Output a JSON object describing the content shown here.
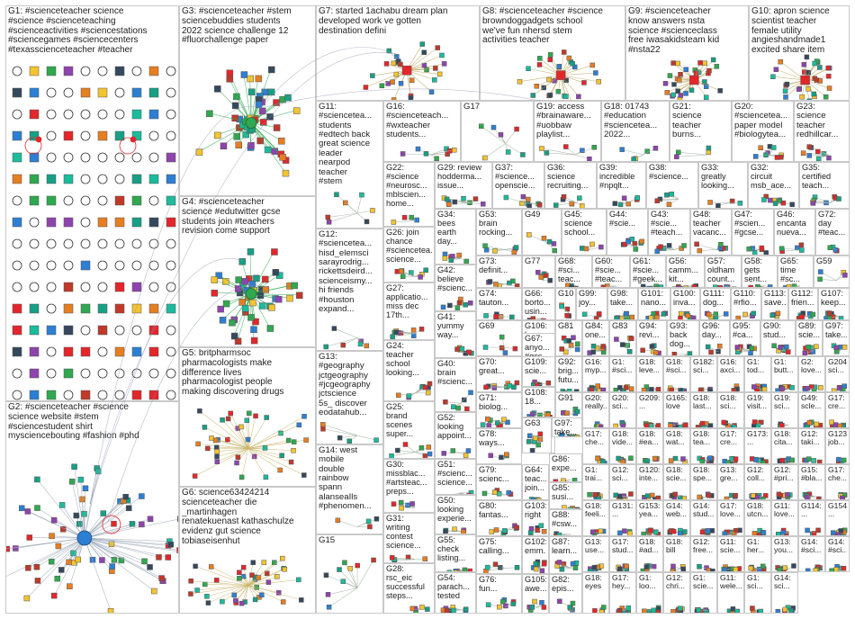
{
  "title": "",
  "groups": [
    {
      "id": "G1",
      "text": "G1: #scienceteacher science\n#science #scienceteaching\n#scienceactivities #sciencestations\n#sciencegames #sciencecenters\n#texasscienceteacher #teacher"
    },
    {
      "id": "G2",
      "text": "G2: #scienceteacher #science\nscience website #stem\n#sciencestudent shirt\nmysciencebouting #fashion #phd"
    },
    {
      "id": "G3",
      "text": "G3: #scienceteacher #stem\nsciencebuddies students\n2022 science challenge 12\n#fluorchallenge paper"
    },
    {
      "id": "G4",
      "text": "G4: #scienceteacher\nscience #edutwitter gcse\nstudents join #teachers\nrevision come support"
    },
    {
      "id": "G5",
      "text": "G5: britpharmsoc\npharmacologists make\ndifference lives\npharmacologist people\nmaking discovering drugs"
    },
    {
      "id": "G6",
      "text": "G6: science63424214\nscienceteacher die\n_martinhagen\nrenatekuenast kathaschulze\nevidenz gut science\ntobiaseisenhut"
    },
    {
      "id": "G7",
      "text": "G7: started 1achabu dream plan\ndeveloped work ve gotten\ndestination defini"
    },
    {
      "id": "G8",
      "text": "G8: #scienceteacher #science\nbrowndoggadgets school\nwe've fun nhersd stem\nactivities teacher"
    },
    {
      "id": "G9",
      "text": "G9: #scienceteacher\nknow answers nsta\nscience #scienceclass\nfree iwasakidsteam kid\n#nsta22"
    },
    {
      "id": "G10",
      "text": "G10: apron science\nscientist teacher\nfemale utility\nangieshandmade1\nexcited share item"
    },
    {
      "id": "G11",
      "text": "G11:\n#scienceteа...\nstudents\n#edtech back\ngreat science\nleader\nnearpod\nteacher\n#stem"
    },
    {
      "id": "G12",
      "text": "G12:\n#scienceteа...\nhisd_elemsci\nsarayrodrig...\nrickettsdeird...\nsciencеismy...\nhi friends\n#houston\nexpand..."
    },
    {
      "id": "G13",
      "text": "G13:\n#geography\njctgeography\n#jcgeography\njctscience\n5s_ discover\neodatahub..."
    },
    {
      "id": "G14",
      "text": "G14: west\nmobile\ndouble\nrainbow\nspann\nalanseaIls\n#phenomen..."
    },
    {
      "id": "G15",
      "text": "G15"
    },
    {
      "id": "G16",
      "text": "G16:\n#scienceteach...\n#wxteacher\nstudents..."
    },
    {
      "id": "G17",
      "text": "G17"
    },
    {
      "id": "G18",
      "text": "G18: 01743\n#education\n#scienceteа...\n2022..."
    },
    {
      "id": "G19",
      "text": "G19: access\n#brainaware...\n#uobbaw\nplaylist..."
    },
    {
      "id": "G20",
      "text": "G20:\n#scienceteа...\npaper model\n#biologyteа..."
    },
    {
      "id": "G21",
      "text": "G21:\nscience\nteacher\nburns..."
    },
    {
      "id": "G22",
      "text": "G22:\n#science\n#neurosc...\nmblscien...\nhome..."
    },
    {
      "id": "G23",
      "text": "G23:\nscience\nteacher\nredhillcar..."
    },
    {
      "id": "G24",
      "text": "G24:\nteacher\nschool\nlooking..."
    },
    {
      "id": "G25",
      "text": "G25:\nbrand\nscenes\nsuper..."
    },
    {
      "id": "G26",
      "text": "G26: join\nchance\n#scienceteа...\nscience..."
    },
    {
      "id": "G27",
      "text": "G27:\napplicatio...\nmiss dec\n17th..."
    },
    {
      "id": "G28",
      "text": "G28:\nrsc_eic\nsuccessful\nsteps..."
    },
    {
      "id": "G29",
      "text": "G29: review\nhodderma...\nissue..."
    },
    {
      "id": "G30",
      "text": "G30:\nmissblac...\n#artsteac...\npreps..."
    },
    {
      "id": "G31",
      "text": "G31:\nwriting\ncontest\nscience..."
    },
    {
      "id": "G32",
      "text": "G32:\ncircuit\nmsb_ace..."
    },
    {
      "id": "G33",
      "text": "G33:\ngreatly\nlooking..."
    },
    {
      "id": "G34",
      "text": "G34:\nbees\nearth\nday..."
    },
    {
      "id": "G35",
      "text": "G35:\ncertified\nteach..."
    },
    {
      "id": "G36",
      "text": "G36:\nscience\nrecruiting..."
    },
    {
      "id": "G37",
      "text": "G37:\n#science...\nopenscie..."
    },
    {
      "id": "G38",
      "text": "G38:\n#science..."
    },
    {
      "id": "G39",
      "text": "G39:\nincredible\n#npqlt..."
    },
    {
      "id": "G40",
      "text": "G40:\nbrain\n#scienc..."
    },
    {
      "id": "G41",
      "text": "G41:\nyummy\nway..."
    },
    {
      "id": "G42",
      "text": "G42:\nbelieve\n#scienc..."
    },
    {
      "id": "G43",
      "text": "G43:\n#scie...\n#teach..."
    },
    {
      "id": "G44",
      "text": "G44:\n#scie..."
    },
    {
      "id": "G45",
      "text": "G45:\nscience\nschool..."
    },
    {
      "id": "G46",
      "text": "G46:\nencanta\nnueva..."
    },
    {
      "id": "G47",
      "text": "G47:\n#scien...\n#gcse..."
    },
    {
      "id": "G48",
      "text": "G48:\nteacher\nvacanc..."
    },
    {
      "id": "G49",
      "text": "G49"
    },
    {
      "id": "G50",
      "text": "G50:\nlooking\nexperie..."
    },
    {
      "id": "G51",
      "text": "G51:\n#scienc...\nscience..."
    },
    {
      "id": "G52",
      "text": "G52:\nlooking\nappoint..."
    },
    {
      "id": "G53",
      "text": "G53:\nbrain\nrocking..."
    },
    {
      "id": "G54",
      "text": "G54:\nparach...\ntested"
    },
    {
      "id": "G55",
      "text": "G55:\ncheck\nlisting..."
    },
    {
      "id": "G56",
      "text": "G56:\ncamm...\nkit..."
    },
    {
      "id": "G57",
      "text": "G57:\noldham\ncount..."
    },
    {
      "id": "G58",
      "text": "G58:\ngets\nsent..."
    },
    {
      "id": "G59",
      "text": "G59"
    },
    {
      "id": "G60",
      "text": "G60:\n#scie...\n#teac..."
    },
    {
      "id": "G61",
      "text": "G61:\n#scie...\n#geek..."
    },
    {
      "id": "G62",
      "text": "G62:\ncheck\nscie..."
    },
    {
      "id": "G63",
      "text": "G63"
    },
    {
      "id": "G64",
      "text": "G64:\nteac...\njoin..."
    },
    {
      "id": "G65",
      "text": "G65:\ntime\n#sc..."
    },
    {
      "id": "G66",
      "text": "G66:\nborto...\nusin..."
    },
    {
      "id": "G67",
      "text": "G67:\nanyo...\n#gcs..."
    },
    {
      "id": "G68",
      "text": "G68:\n#sci...\nteac..."
    },
    {
      "id": "G69",
      "text": "G69"
    },
    {
      "id": "G70",
      "text": "G70:\ngreat..."
    },
    {
      "id": "G71",
      "text": "G71:\nbiolog..."
    },
    {
      "id": "G72",
      "text": "G72:\nday\n#teac..."
    },
    {
      "id": "G73",
      "text": "G73:\ndefinit..."
    },
    {
      "id": "G74",
      "text": "G74:\ntauton..."
    },
    {
      "id": "G75",
      "text": "G75:\ncalling..."
    },
    {
      "id": "G76",
      "text": "G76:\nfun..."
    },
    {
      "id": "G77",
      "text": "G77"
    },
    {
      "id": "G78",
      "text": "G78:\nways..."
    },
    {
      "id": "G79",
      "text": "G79:\nscienc..."
    },
    {
      "id": "G80",
      "text": "G80:\nfantas..."
    },
    {
      "id": "G81",
      "text": "G81"
    },
    {
      "id": "G82",
      "text": "G82:\nepis..."
    },
    {
      "id": "G83",
      "text": "G83"
    },
    {
      "id": "G84",
      "text": "G84:\none..."
    },
    {
      "id": "G85",
      "text": "G85:\nsusi..."
    },
    {
      "id": "G86",
      "text": "G86:\nexpe..."
    },
    {
      "id": "G87",
      "text": "G87:\nlearn..."
    },
    {
      "id": "G88",
      "text": "G88:\n#csw..."
    },
    {
      "id": "G89",
      "text": "G89:\nscie..."
    },
    {
      "id": "G90",
      "text": "G90:\nstud..."
    },
    {
      "id": "G91",
      "text": "G91"
    },
    {
      "id": "G92",
      "text": "G92:\nbrig...\nfutu..."
    },
    {
      "id": "G93",
      "text": "G93:\nback\ndog..."
    },
    {
      "id": "G94",
      "text": "G94:\nrevi..."
    },
    {
      "id": "G95",
      "text": "G95:\n#ca..."
    },
    {
      "id": "G96",
      "text": "G96:\nday..."
    },
    {
      "id": "G97",
      "text": "G97:\ntake..."
    },
    {
      "id": "G98",
      "text": "G98:\ntake..."
    },
    {
      "id": "G99",
      "text": "G99:\njoy..."
    },
    {
      "id": "G100",
      "text": "G100:\ninva..."
    },
    {
      "id": "G101",
      "text": "G101:\nnano..."
    },
    {
      "id": "G102",
      "text": "G102:\nemm..."
    },
    {
      "id": "G103",
      "text": "G103:\nright"
    },
    {
      "id": "G104",
      "text": "G104"
    },
    {
      "id": "G105",
      "text": "G105:\nawe..."
    },
    {
      "id": "G106",
      "text": "G106:\nhono..."
    },
    {
      "id": "G107",
      "text": "G107:\nkeep..."
    },
    {
      "id": "G108",
      "text": "G108:\n18..."
    },
    {
      "id": "G109",
      "text": "G109:\nscie..."
    },
    {
      "id": "G110",
      "text": "G110:\n#rfio..."
    },
    {
      "id": "G111",
      "text": "G111:\ndog..."
    },
    {
      "id": "G112",
      "text": "G112:\nfrien..."
    },
    {
      "id": "G113",
      "text": "G113:\nsave..."
    }
  ],
  "small_groups": [
    {
      "id": "G16",
      "text": "G16:\nmyp..."
    },
    {
      "id": "G17",
      "text": "G1:\n#sci..."
    },
    {
      "id": "G18",
      "text": "G18:\nleve..."
    },
    {
      "id": "G18",
      "text": "G18:\n#sci..."
    },
    {
      "id": "G182",
      "text": "G182:\nsci..."
    },
    {
      "id": "G16",
      "text": "G16:\naxci..."
    },
    {
      "id": "G1",
      "text": "G1:\ntod..."
    },
    {
      "id": "G1",
      "text": "G1:\nbutt..."
    },
    {
      "id": "G2",
      "text": "G2:\nlove..."
    },
    {
      "id": "G204",
      "text": "G204:\nsci..."
    },
    {
      "id": "G20",
      "text": "G20:\nreally..."
    },
    {
      "id": "G20",
      "text": "G20:\nsci..."
    },
    {
      "id": "G209",
      "text": "G209:\n..."
    },
    {
      "id": "G165",
      "text": "G165:\nlove"
    },
    {
      "id": "G18",
      "text": "G18:\nlast..."
    },
    {
      "id": "G18",
      "text": "G18:\nsci..."
    },
    {
      "id": "G19",
      "text": "G19:\nvisit..."
    },
    {
      "id": "G19",
      "text": "G19:\nsci..."
    },
    {
      "id": "G49",
      "text": "G49:\nscle..."
    },
    {
      "id": "G17",
      "text": "G17:\ncre..."
    },
    {
      "id": "G17",
      "text": "G17:\nche..."
    },
    {
      "id": "G18",
      "text": "G18:\nvide..."
    },
    {
      "id": "G18",
      "text": "G18:\n#ea..."
    },
    {
      "id": "G18",
      "text": "G18:\nwat..."
    },
    {
      "id": "G18",
      "text": "G18:\ntea..."
    },
    {
      "id": "G17",
      "text": "G17:\ncre..."
    },
    {
      "id": "G173",
      "text": "G173:\n..."
    },
    {
      "id": "G18",
      "text": "G18:\ncita..."
    },
    {
      "id": "G12",
      "text": "G12:\ntaki..."
    },
    {
      "id": "G123",
      "text": "G123:\njob..."
    },
    {
      "id": "G1",
      "text": "G1:\ntrai..."
    },
    {
      "id": "G12",
      "text": "G12:\nsci..."
    },
    {
      "id": "G120",
      "text": "G120:\ninte..."
    },
    {
      "id": "G18",
      "text": "G18:\nscie..."
    },
    {
      "id": "G18",
      "text": "G18:\nspe..."
    },
    {
      "id": "G13",
      "text": "G13:\ngre..."
    },
    {
      "id": "G12",
      "text": "G12:\ncoll..."
    },
    {
      "id": "G12",
      "text": "G12:\n#pri..."
    },
    {
      "id": "G15",
      "text": "G15:\n#bla..."
    },
    {
      "id": "G17",
      "text": "G17:\nche..."
    },
    {
      "id": "G18",
      "text": "G18:\nfeeli..."
    },
    {
      "id": "G131",
      "text": "G131:\n..."
    },
    {
      "id": "G153",
      "text": "G153:\nyea..."
    },
    {
      "id": "G14",
      "text": "G14:\nweb..."
    },
    {
      "id": "G14",
      "text": "G14:\nstud..."
    },
    {
      "id": "G17",
      "text": "G17:\nlove..."
    },
    {
      "id": "G18",
      "text": "G18:\nutcn..."
    },
    {
      "id": "G11",
      "text": "G11:\nlove..."
    },
    {
      "id": "G114",
      "text": "G114:\n..."
    },
    {
      "id": "G154",
      "text": "G154:\n..."
    },
    {
      "id": "G13",
      "text": "G13:\nuse..."
    },
    {
      "id": "G17",
      "text": "G17:\nstud..."
    },
    {
      "id": "G18",
      "text": "G18:\n#ad..."
    },
    {
      "id": "G18",
      "text": "G18:\nbill"
    },
    {
      "id": "G12",
      "text": "G12:\nfree..."
    },
    {
      "id": "G11",
      "text": "G11:\nscie..."
    },
    {
      "id": "G1",
      "text": "G1:\nher..."
    },
    {
      "id": "G13",
      "text": "G13:\nyou..."
    },
    {
      "id": "G14",
      "text": "G14:\n#sci..."
    },
    {
      "id": "G14",
      "text": "G14:\n#sci..."
    },
    {
      "id": "G18",
      "text": "G18:\neyes"
    },
    {
      "id": "G17",
      "text": "G17:\nhey..."
    },
    {
      "id": "G1",
      "text": "G1:\nloo..."
    },
    {
      "id": "G12",
      "text": "G12:\nchri..."
    },
    {
      "id": "G1",
      "text": "G1:\nscie..."
    },
    {
      "id": "G11",
      "text": "G11:\nwele..."
    },
    {
      "id": "G1",
      "text": "G1:\nsci..."
    },
    {
      "id": "G14",
      "text": "G14:\nsci..."
    }
  ],
  "colors": {
    "border": "#c9c9c9",
    "label": "#222222",
    "edge": "#9aa7b8",
    "node_palette": [
      "#e4262b",
      "#2d7fd3",
      "#2fa84f",
      "#f4c430",
      "#8e44ad",
      "#16a085",
      "#e67e22",
      "#34495e",
      "#c0392b",
      "#1abc9c"
    ]
  }
}
